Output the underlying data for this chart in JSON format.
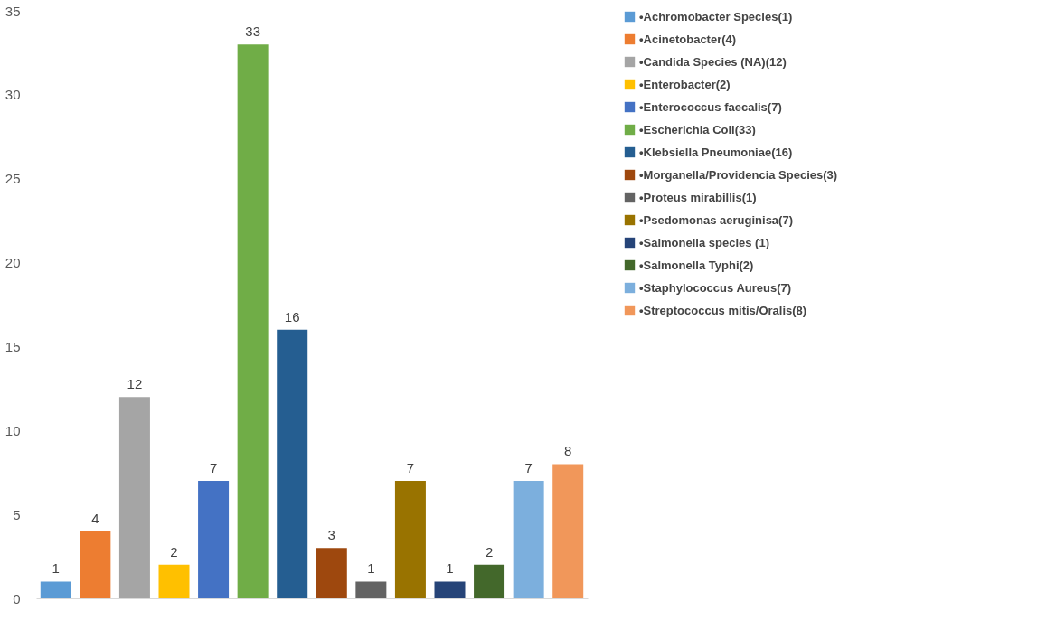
{
  "chart_data": {
    "type": "bar",
    "categories": [
      null,
      null,
      null,
      null,
      null,
      null,
      null,
      null,
      null,
      null,
      null,
      null,
      null,
      null
    ],
    "series": [
      {
        "name": "•Achromobacter Species(1)",
        "color": "#5b9bd5",
        "values": [
          1,
          null,
          null,
          null,
          null,
          null,
          null,
          null,
          null,
          null,
          null,
          null,
          null,
          null
        ]
      },
      {
        "name": "•Acinetobacter(4)",
        "color": "#ed7d31",
        "values": [
          null,
          4,
          null,
          null,
          null,
          null,
          null,
          null,
          null,
          null,
          null,
          null,
          null,
          null
        ]
      },
      {
        "name": "•Candida Species (NA)(12)",
        "color": "#a5a5a5",
        "values": [
          null,
          null,
          12,
          null,
          null,
          null,
          null,
          null,
          null,
          null,
          null,
          null,
          null,
          null
        ]
      },
      {
        "name": "•Enterobacter(2)",
        "color": "#ffc000",
        "values": [
          null,
          null,
          null,
          2,
          null,
          null,
          null,
          null,
          null,
          null,
          null,
          null,
          null,
          null
        ]
      },
      {
        "name": "•Enterococcus faecalis(7)",
        "color": "#4472c4",
        "values": [
          null,
          null,
          null,
          null,
          7,
          null,
          null,
          null,
          null,
          null,
          null,
          null,
          null,
          null
        ]
      },
      {
        "name": "•Escherichia Coli(33)",
        "color": "#70ad47",
        "values": [
          null,
          null,
          null,
          null,
          null,
          33,
          null,
          null,
          null,
          null,
          null,
          null,
          null,
          null
        ]
      },
      {
        "name": "•Klebsiella Pneumoniae(16)",
        "color": "#255e91",
        "values": [
          null,
          null,
          null,
          null,
          null,
          null,
          16,
          null,
          null,
          null,
          null,
          null,
          null,
          null
        ]
      },
      {
        "name": "•Morganella/Providencia Species(3)",
        "color": "#9e480e",
        "values": [
          null,
          null,
          null,
          null,
          null,
          null,
          null,
          3,
          null,
          null,
          null,
          null,
          null,
          null
        ]
      },
      {
        "name": "•Proteus mirabillis(1)",
        "color": "#636363",
        "values": [
          null,
          null,
          null,
          null,
          null,
          null,
          null,
          null,
          1,
          null,
          null,
          null,
          null,
          null
        ]
      },
      {
        "name": "•Psedomonas aeruginisa(7)",
        "color": "#997300",
        "values": [
          null,
          null,
          null,
          null,
          null,
          null,
          null,
          null,
          null,
          7,
          null,
          null,
          null,
          null
        ]
      },
      {
        "name": "•Salmonella species (1)",
        "color": "#264478",
        "values": [
          null,
          null,
          null,
          null,
          null,
          null,
          null,
          null,
          null,
          null,
          1,
          null,
          null,
          null
        ]
      },
      {
        "name": "•Salmonella Typhi(2)",
        "color": "#43682b",
        "values": [
          null,
          null,
          null,
          null,
          null,
          null,
          null,
          null,
          null,
          null,
          null,
          2,
          null,
          null
        ]
      },
      {
        "name": "•Staphylococcus Aureus(7)",
        "color": "#7cafdd",
        "values": [
          null,
          null,
          null,
          null,
          null,
          null,
          null,
          null,
          null,
          null,
          null,
          null,
          7,
          null
        ]
      },
      {
        "name": "•Streptococcus mitis/Oralis(8)",
        "color": "#f1975a",
        "values": [
          null,
          null,
          null,
          null,
          null,
          null,
          null,
          null,
          null,
          null,
          null,
          null,
          null,
          8
        ]
      }
    ],
    "ylim": [
      0,
      35
    ],
    "yticks": [
      0,
      5,
      10,
      15,
      20,
      25,
      30,
      35
    ],
    "data_labels": true,
    "legend": "right",
    "tick_labels": "y",
    "grid": false
  }
}
